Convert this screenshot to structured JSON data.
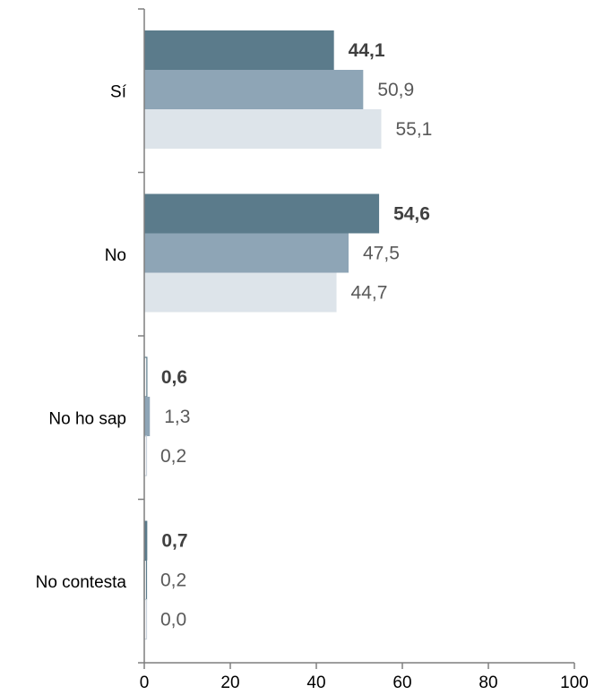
{
  "chart_data": {
    "type": "bar",
    "orientation": "horizontal",
    "categories": [
      "Sí",
      "No",
      "No ho sap",
      "No contesta"
    ],
    "series": [
      {
        "values": [
          44.1,
          54.6,
          0.6,
          0.7
        ],
        "color": "#5b7b8b",
        "label_bold": true
      },
      {
        "values": [
          50.9,
          47.5,
          1.3,
          0.2
        ],
        "color": "#8ea5b6",
        "label_bold": false
      },
      {
        "values": [
          55.1,
          44.7,
          0.2,
          0.0
        ],
        "color": "#dde4ea",
        "label_bold": false
      }
    ],
    "value_labels": [
      [
        "44,1",
        "54,6",
        "0,6",
        "0,7"
      ],
      [
        "50,9",
        "47,5",
        "1,3",
        "0,2"
      ],
      [
        "55,1",
        "44,7",
        "0,2",
        "0,0"
      ]
    ],
    "xlim": [
      0,
      100
    ],
    "xticks": [
      0,
      20,
      40,
      60,
      80,
      100
    ],
    "xtick_labels": [
      "0",
      "20",
      "40",
      "60",
      "80",
      "100"
    ],
    "title": "",
    "xlabel": "",
    "ylabel": "",
    "grid": false,
    "legend": false
  }
}
